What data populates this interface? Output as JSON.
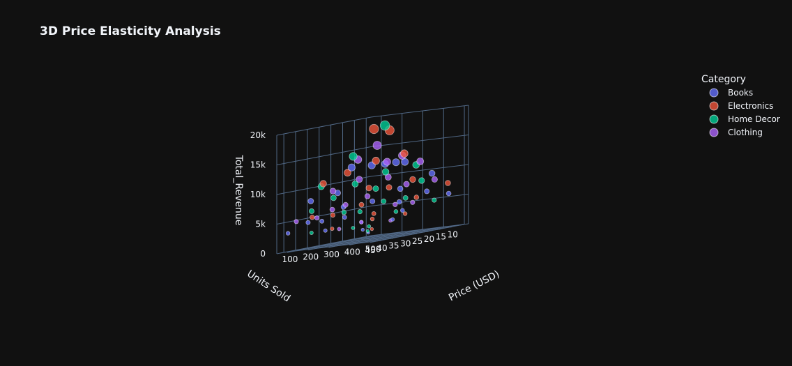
{
  "chart_data": {
    "type": "scatter3d",
    "title": "3D Price Elasticity Analysis",
    "axes": {
      "x": {
        "label": "Price (USD)",
        "range": [
          50,
          520
        ],
        "ticks": [
          100,
          200,
          300,
          400,
          500
        ],
        "tick_labels": [
          "100",
          "200",
          "300",
          "400",
          "500"
        ]
      },
      "y": {
        "label": "Units Sold",
        "range": [
          8,
          48
        ],
        "ticks": [
          10,
          15,
          20,
          25,
          30,
          35,
          40,
          45
        ],
        "tick_labels": [
          "10",
          "15",
          "20",
          "25",
          "30",
          "35",
          "40",
          "45"
        ]
      },
      "z": {
        "label": "Total_Revenue",
        "range": [
          0,
          20000
        ],
        "ticks": [
          0,
          5000,
          10000,
          15000,
          20000
        ],
        "tick_labels": [
          "0",
          "5k",
          "10k",
          "15k",
          "20k"
        ]
      }
    },
    "grid": true,
    "legend": {
      "title": "Category",
      "placement": "top-right"
    },
    "series": [
      {
        "name": "Books",
        "color": "#636efa",
        "points": [
          [
            420,
            30,
            12500
          ],
          [
            390,
            32,
            12500
          ],
          [
            180,
            45,
            8100
          ],
          [
            320,
            40,
            12800
          ],
          [
            480,
            20,
            9600
          ],
          [
            120,
            35,
            4200
          ],
          [
            250,
            25,
            6250
          ],
          [
            90,
            15,
            1350
          ],
          [
            200,
            12,
            2400
          ],
          [
            300,
            18,
            5400
          ],
          [
            150,
            28,
            4200
          ],
          [
            60,
            10,
            600
          ],
          [
            350,
            22,
            7700
          ],
          [
            470,
            12,
            5640
          ],
          [
            110,
            40,
            4400
          ],
          [
            230,
            38,
            8740
          ],
          [
            410,
            16,
            6560
          ],
          [
            80,
            30,
            2400
          ],
          [
            270,
            14,
            3780
          ],
          [
            140,
            20,
            2800
          ],
          [
            190,
            32,
            6080
          ],
          [
            360,
            35,
            12600
          ],
          [
            70,
            45,
            3150
          ],
          [
            440,
            28,
            12320
          ]
        ]
      },
      {
        "name": "Electronics",
        "color": "#ef553b",
        "points": [
          [
            450,
            42,
            18900
          ],
          [
            380,
            35,
            13300
          ],
          [
            290,
            30,
            8700
          ],
          [
            200,
            20,
            4000
          ],
          [
            500,
            15,
            7500
          ],
          [
            130,
            40,
            5200
          ],
          [
            240,
            45,
            10800
          ],
          [
            330,
            25,
            8250
          ],
          [
            170,
            18,
            3060
          ],
          [
            90,
            28,
            2520
          ],
          [
            480,
            38,
            18240
          ],
          [
            260,
            12,
            3120
          ],
          [
            410,
            22,
            9020
          ],
          [
            150,
            33,
            4950
          ],
          [
            360,
            16,
            5760
          ],
          [
            100,
            12,
            1200
          ],
          [
            300,
            40,
            12000
          ],
          [
            220,
            27,
            5940
          ],
          [
            460,
            30,
            13800
          ]
        ]
      },
      {
        "name": "Home Decor",
        "color": "#00cc96",
        "points": [
          [
            480,
            40,
            19200
          ],
          [
            370,
            30,
            11100
          ],
          [
            280,
            35,
            9800
          ],
          [
            190,
            25,
            4750
          ],
          [
            100,
            20,
            2000
          ],
          [
            430,
            20,
            8600
          ],
          [
            250,
            15,
            3750
          ],
          [
            150,
            42,
            6300
          ],
          [
            330,
            18,
            5940
          ],
          [
            210,
            38,
            7980
          ],
          [
            70,
            35,
            2450
          ],
          [
            460,
            25,
            11500
          ],
          [
            300,
            28,
            8400
          ],
          [
            120,
            15,
            1800
          ],
          [
            400,
            12,
            4800
          ],
          [
            230,
            45,
            10350
          ],
          [
            170,
            30,
            5100
          ],
          [
            350,
            42,
            14700
          ],
          [
            80,
            12,
            960
          ],
          [
            270,
            22,
            5940
          ]
        ]
      },
      {
        "name": "Clothing",
        "color": "#ab63fa",
        "points": [
          [
            420,
            38,
            15960
          ],
          [
            350,
            40,
            14000
          ],
          [
            300,
            35,
            10500
          ],
          [
            260,
            28,
            7280
          ],
          [
            480,
            25,
            12000
          ],
          [
            200,
            32,
            6400
          ],
          [
            140,
            20,
            2800
          ],
          [
            380,
            22,
            8360
          ],
          [
            110,
            45,
            4950
          ],
          [
            230,
            40,
            9200
          ],
          [
            330,
            15,
            4950
          ],
          [
            170,
            35,
            5950
          ],
          [
            450,
            30,
            13500
          ],
          [
            90,
            25,
            2250
          ],
          [
            280,
            18,
            5040
          ],
          [
            400,
            32,
            12800
          ],
          [
            190,
            12,
            2280
          ],
          [
            360,
            28,
            10080
          ],
          [
            130,
            38,
            4940
          ],
          [
            470,
            18,
            8460
          ]
        ]
      }
    ]
  }
}
